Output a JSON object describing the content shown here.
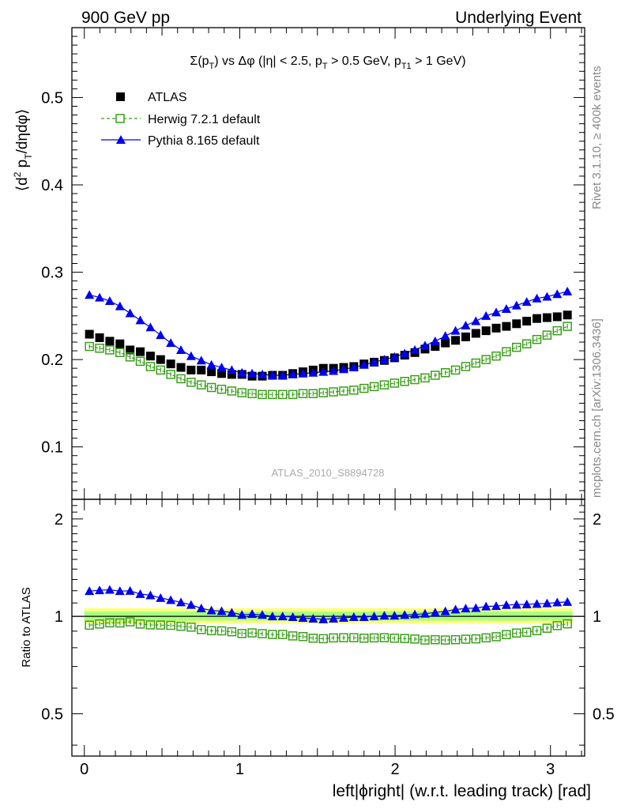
{
  "header": {
    "left": "900 GeV pp",
    "right": "Underlying Event"
  },
  "side_labels": {
    "rivet": "Rivet 3.1.10, ≥ 400k events",
    "mcplots": "mcplots.cern.ch [arXiv:1306.3436]"
  },
  "watermark": "ATLAS_2010_S8894728",
  "colors": {
    "atlas": "#000000",
    "herwig": "#3a9e1a",
    "pythia": "#0000ee",
    "band_outer": "#ffff80",
    "band_inner": "#a8ff80"
  },
  "chart_data": [
    {
      "type": "scatter",
      "title_parts": [
        "Σ(p",
        "T",
        ") vs Δφ (|η| < 2.5, p",
        "T",
        " > 0.5 GeV, p",
        "T1",
        " > 1 GeV)"
      ],
      "ylabel_parts": [
        "⟨d",
        "2",
        " p",
        "T",
        "/dηdφ⟩"
      ],
      "xlim": [
        -0.08,
        3.22
      ],
      "ylim": [
        0.04,
        0.58
      ],
      "yticks": [
        0.1,
        0.2,
        0.3,
        0.4,
        0.5
      ],
      "yticklabels": [
        "0.1",
        "0.2",
        "0.3",
        "0.4",
        "0.5"
      ],
      "legend": [
        "ATLAS",
        "Herwig 7.2.1 default",
        "Pythia 8.165 default"
      ],
      "legend_position": "top-left",
      "x": [
        0.0327,
        0.0982,
        0.1636,
        0.2291,
        0.2945,
        0.36,
        0.4254,
        0.4909,
        0.5563,
        0.6218,
        0.6872,
        0.7527,
        0.8181,
        0.8836,
        0.949,
        1.0145,
        1.0799,
        1.1454,
        1.2108,
        1.2763,
        1.3417,
        1.4072,
        1.4726,
        1.5381,
        1.6035,
        1.669,
        1.7344,
        1.7999,
        1.8653,
        1.9308,
        1.9962,
        2.0617,
        2.1271,
        2.1926,
        2.258,
        2.3235,
        2.3889,
        2.4544,
        2.5198,
        2.5853,
        2.6507,
        2.7162,
        2.7816,
        2.8471,
        2.9125,
        2.978,
        3.0434,
        3.1089
      ],
      "series": [
        {
          "name": "ATLAS",
          "marker": "filled-square",
          "values": [
            0.229,
            0.225,
            0.221,
            0.218,
            0.211,
            0.209,
            0.204,
            0.2,
            0.195,
            0.191,
            0.188,
            0.188,
            0.186,
            0.184,
            0.183,
            0.183,
            0.181,
            0.181,
            0.182,
            0.182,
            0.184,
            0.186,
            0.188,
            0.19,
            0.19,
            0.191,
            0.192,
            0.195,
            0.197,
            0.199,
            0.202,
            0.205,
            0.208,
            0.212,
            0.215,
            0.219,
            0.222,
            0.226,
            0.23,
            0.233,
            0.236,
            0.238,
            0.241,
            0.244,
            0.247,
            0.248,
            0.249,
            0.251
          ]
        },
        {
          "name": "Herwig 7.2.1 default",
          "marker": "open-square",
          "values": [
            0.215,
            0.213,
            0.211,
            0.208,
            0.203,
            0.198,
            0.192,
            0.188,
            0.183,
            0.178,
            0.174,
            0.171,
            0.168,
            0.166,
            0.164,
            0.162,
            0.161,
            0.16,
            0.16,
            0.16,
            0.16,
            0.161,
            0.161,
            0.162,
            0.163,
            0.164,
            0.165,
            0.167,
            0.169,
            0.171,
            0.173,
            0.175,
            0.177,
            0.179,
            0.182,
            0.185,
            0.188,
            0.192,
            0.196,
            0.2,
            0.204,
            0.209,
            0.214,
            0.218,
            0.223,
            0.228,
            0.233,
            0.238
          ]
        },
        {
          "name": "Pythia 8.165 default",
          "marker": "filled-triangle",
          "values": [
            0.274,
            0.271,
            0.267,
            0.261,
            0.253,
            0.245,
            0.237,
            0.228,
            0.219,
            0.211,
            0.204,
            0.199,
            0.194,
            0.191,
            0.188,
            0.185,
            0.184,
            0.183,
            0.182,
            0.182,
            0.183,
            0.184,
            0.185,
            0.186,
            0.187,
            0.189,
            0.191,
            0.194,
            0.197,
            0.2,
            0.203,
            0.207,
            0.211,
            0.216,
            0.221,
            0.227,
            0.233,
            0.239,
            0.244,
            0.25,
            0.254,
            0.258,
            0.262,
            0.266,
            0.27,
            0.272,
            0.275,
            0.278
          ]
        }
      ]
    },
    {
      "type": "scatter",
      "ylabel": "Ratio to ATLAS",
      "xlabel": "left|ϕright| (w.r.t. leading track) [rad]",
      "xlim": [
        -0.08,
        3.22
      ],
      "ylim": [
        0.37,
        2.3
      ],
      "log_y": true,
      "xticks": [
        0,
        1,
        2,
        3
      ],
      "xticklabels": [
        "0",
        "1",
        "2",
        "3"
      ],
      "yticks": [
        0.5,
        1,
        2
      ],
      "yticklabels": [
        "0.5",
        "1",
        "2"
      ],
      "band_outer": [
        0.95,
        1.06
      ],
      "band_inner": [
        0.97,
        1.035
      ],
      "series": [
        {
          "name": "Herwig 7.2.1 default",
          "values": [
            0.939,
            0.947,
            0.955,
            0.954,
            0.962,
            0.947,
            0.941,
            0.94,
            0.938,
            0.932,
            0.926,
            0.91,
            0.903,
            0.902,
            0.896,
            0.885,
            0.889,
            0.884,
            0.879,
            0.879,
            0.87,
            0.866,
            0.856,
            0.853,
            0.858,
            0.859,
            0.859,
            0.856,
            0.858,
            0.859,
            0.856,
            0.854,
            0.851,
            0.845,
            0.847,
            0.845,
            0.847,
            0.85,
            0.852,
            0.858,
            0.865,
            0.878,
            0.888,
            0.893,
            0.903,
            0.919,
            0.936,
            0.948
          ]
        },
        {
          "name": "Pythia 8.165 default",
          "values": [
            1.197,
            1.204,
            1.208,
            1.197,
            1.199,
            1.172,
            1.162,
            1.14,
            1.123,
            1.105,
            1.085,
            1.059,
            1.043,
            1.038,
            1.027,
            1.011,
            1.017,
            1.011,
            1.0,
            1.0,
            0.995,
            0.989,
            0.984,
            0.979,
            0.984,
            0.99,
            0.995,
            0.995,
            1.0,
            1.005,
            1.005,
            1.01,
            1.014,
            1.019,
            1.028,
            1.037,
            1.05,
            1.058,
            1.061,
            1.073,
            1.076,
            1.084,
            1.087,
            1.09,
            1.093,
            1.097,
            1.104,
            1.108
          ]
        }
      ]
    }
  ]
}
